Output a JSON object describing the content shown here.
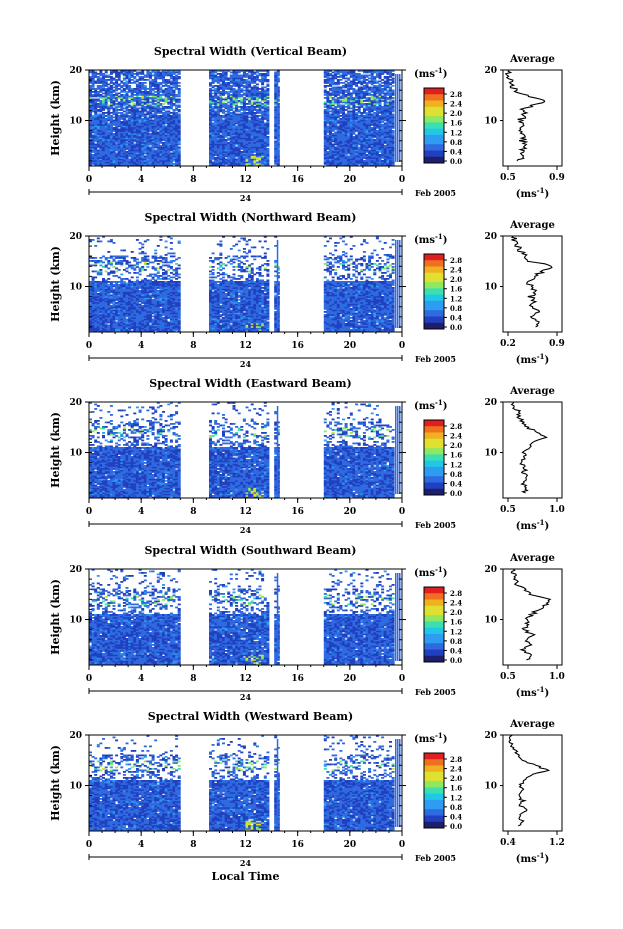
{
  "common": {
    "ylabel": "Height (km)",
    "xlabel": "Local Time",
    "unit": "(ms",
    "unit_sup": "-1",
    "unit_close": ")",
    "avg_title": "Average",
    "avg_xunit": "(ms",
    "date_day": "24",
    "date_label": "Feb 2005",
    "x_ticks": [
      "0",
      "4",
      "8",
      "12",
      "16",
      "20",
      "0"
    ],
    "y_ticks": [
      "20",
      "10"
    ],
    "colorbar_ticks": [
      "2.8",
      "2.4",
      "2.0",
      "1.6",
      "1.2",
      "0.8",
      "0.4",
      "0.0"
    ],
    "colors": {
      "scale": [
        "#1e1e6e",
        "#2040c0",
        "#2f6ae0",
        "#2e9cf0",
        "#20c8e8",
        "#3ce0b0",
        "#8ee860",
        "#e0e030",
        "#f0b020",
        "#f07020",
        "#e02020"
      ],
      "blank": "#ffffff",
      "axis": "#000000"
    }
  },
  "chart_data": [
    {
      "type": "heatmap",
      "title": "Spectral Width (Vertical Beam)",
      "xlabel": "",
      "ylabel": "Height (km)",
      "xlim": [
        0,
        24
      ],
      "ylim": [
        1,
        20
      ],
      "data_gaps_hours": [
        [
          6.9,
          9.2
        ],
        [
          13.8,
          14.3
        ],
        [
          14.6,
          18.0
        ]
      ],
      "cbar_range": [
        0.0,
        3.0
      ],
      "average": {
        "xlim": [
          0.35,
          1.0
        ],
        "x_ticks": [
          "0.5",
          "0.9"
        ],
        "profile": [
          [
            2,
            0.52
          ],
          [
            3,
            0.6
          ],
          [
            4,
            0.55
          ],
          [
            5,
            0.62
          ],
          [
            6,
            0.56
          ],
          [
            7,
            0.6
          ],
          [
            8,
            0.54
          ],
          [
            9,
            0.58
          ],
          [
            10,
            0.53
          ],
          [
            11,
            0.6
          ],
          [
            12,
            0.55
          ],
          [
            13,
            0.68
          ],
          [
            14,
            0.82
          ],
          [
            15,
            0.6
          ],
          [
            16,
            0.48
          ],
          [
            17,
            0.45
          ],
          [
            18,
            0.42
          ],
          [
            19,
            0.4
          ],
          [
            20,
            0.41
          ]
        ]
      }
    },
    {
      "type": "heatmap",
      "title": "Spectral Width (Northward Beam)",
      "xlabel": "",
      "ylabel": "Height (km)",
      "xlim": [
        0,
        24
      ],
      "ylim": [
        1,
        20
      ],
      "data_gaps_hours": [
        [
          6.9,
          9.2
        ],
        [
          13.8,
          14.3
        ],
        [
          14.6,
          18.0
        ]
      ],
      "cbar_range": [
        0.0,
        3.0
      ],
      "average": {
        "xlim": [
          0.2,
          0.95
        ],
        "x_ticks": [
          "0.2",
          "0.9"
        ],
        "profile": [
          [
            2,
            0.6
          ],
          [
            3,
            0.62
          ],
          [
            4,
            0.58
          ],
          [
            5,
            0.63
          ],
          [
            6,
            0.57
          ],
          [
            7,
            0.6
          ],
          [
            8,
            0.55
          ],
          [
            9,
            0.6
          ],
          [
            10,
            0.56
          ],
          [
            11,
            0.52
          ],
          [
            12,
            0.6
          ],
          [
            13,
            0.7
          ],
          [
            14,
            0.85
          ],
          [
            15,
            0.55
          ],
          [
            16,
            0.5
          ],
          [
            17,
            0.43
          ],
          [
            18,
            0.38
          ],
          [
            19,
            0.35
          ],
          [
            20,
            0.33
          ]
        ]
      }
    },
    {
      "type": "heatmap",
      "title": "Spectral Width (Eastward Beam)",
      "xlabel": "",
      "ylabel": "Height (km)",
      "xlim": [
        0,
        24
      ],
      "ylim": [
        1,
        20
      ],
      "data_gaps_hours": [
        [
          6.9,
          9.2
        ],
        [
          13.8,
          14.3
        ],
        [
          14.6,
          18.0
        ]
      ],
      "cbar_range": [
        0.0,
        3.0
      ],
      "average": {
        "xlim": [
          0.2,
          1.2
        ],
        "x_ticks": [
          "0.5",
          "1.0"
        ],
        "profile": [
          [
            2,
            0.55
          ],
          [
            3,
            0.6
          ],
          [
            4,
            0.52
          ],
          [
            5,
            0.62
          ],
          [
            6,
            0.55
          ],
          [
            7,
            0.58
          ],
          [
            8,
            0.5
          ],
          [
            9,
            0.56
          ],
          [
            10,
            0.55
          ],
          [
            11,
            0.62
          ],
          [
            12,
            0.7
          ],
          [
            13,
            0.95
          ],
          [
            14,
            0.8
          ],
          [
            15,
            0.6
          ],
          [
            16,
            0.55
          ],
          [
            17,
            0.45
          ],
          [
            18,
            0.5
          ],
          [
            19,
            0.35
          ],
          [
            20,
            0.38
          ]
        ]
      }
    },
    {
      "type": "heatmap",
      "title": "Spectral Width (Southward Beam)",
      "xlabel": "",
      "ylabel": "Height (km)",
      "xlim": [
        0,
        24
      ],
      "ylim": [
        1,
        20
      ],
      "data_gaps_hours": [
        [
          6.9,
          9.2
        ],
        [
          13.8,
          14.3
        ],
        [
          14.6,
          18.0
        ]
      ],
      "cbar_range": [
        0.0,
        3.0
      ],
      "average": {
        "xlim": [
          0.2,
          1.05
        ],
        "x_ticks": [
          "0.5",
          "1.0"
        ],
        "profile": [
          [
            2,
            0.55
          ],
          [
            3,
            0.58
          ],
          [
            4,
            0.5
          ],
          [
            5,
            0.6
          ],
          [
            6,
            0.55
          ],
          [
            7,
            0.62
          ],
          [
            8,
            0.5
          ],
          [
            9,
            0.56
          ],
          [
            10,
            0.54
          ],
          [
            11,
            0.62
          ],
          [
            12,
            0.7
          ],
          [
            13,
            0.85
          ],
          [
            14,
            0.9
          ],
          [
            15,
            0.6
          ],
          [
            16,
            0.5
          ],
          [
            17,
            0.4
          ],
          [
            18,
            0.38
          ],
          [
            19,
            0.35
          ],
          [
            20,
            0.35
          ]
        ]
      }
    },
    {
      "type": "heatmap",
      "title": "Spectral Width (Westward Beam)",
      "xlabel": "",
      "ylabel": "Height (km)",
      "xlim": [
        0,
        24
      ],
      "ylim": [
        1,
        20
      ],
      "data_gaps_hours": [
        [
          6.9,
          9.2
        ],
        [
          13.8,
          14.3
        ],
        [
          14.6,
          18.0
        ]
      ],
      "cbar_range": [
        0.0,
        3.0
      ],
      "average": {
        "xlim": [
          0.3,
          1.25
        ],
        "x_ticks": [
          "0.4",
          "1.2"
        ],
        "profile": [
          [
            2,
            0.58
          ],
          [
            3,
            0.6
          ],
          [
            4,
            0.55
          ],
          [
            5,
            0.7
          ],
          [
            6,
            0.58
          ],
          [
            7,
            0.62
          ],
          [
            8,
            0.55
          ],
          [
            9,
            0.6
          ],
          [
            10,
            0.58
          ],
          [
            11,
            0.65
          ],
          [
            12,
            0.75
          ],
          [
            13,
            1.0
          ],
          [
            14,
            0.85
          ],
          [
            15,
            0.6
          ],
          [
            16,
            0.55
          ],
          [
            17,
            0.5
          ],
          [
            18,
            0.45
          ],
          [
            19,
            0.42
          ],
          [
            20,
            0.45
          ]
        ]
      }
    }
  ]
}
